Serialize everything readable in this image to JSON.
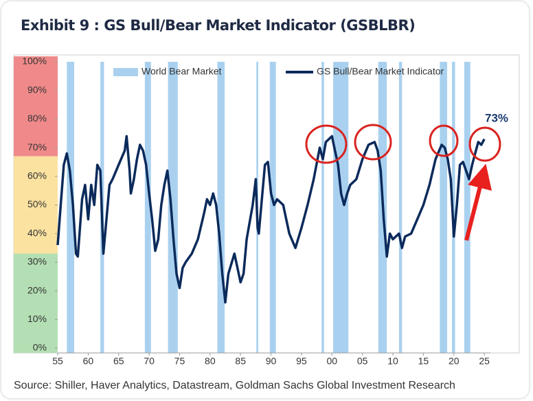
{
  "chart_data": {
    "type": "line",
    "title": "Exhibit 9 : GS Bull/Bear Market Indicator (GSBLBR)",
    "source": "Source: Shiller, Haver Analytics, Datastream, Goldman Sachs Global Investment Research",
    "annotation": "73%",
    "xlim": [
      1955,
      2026
    ],
    "ylim": [
      0,
      100
    ],
    "xticks": [
      {
        "value": 1955,
        "label": "55"
      },
      {
        "value": 1960,
        "label": "60"
      },
      {
        "value": 1965,
        "label": "65"
      },
      {
        "value": 1970,
        "label": "70"
      },
      {
        "value": 1975,
        "label": "75"
      },
      {
        "value": 1980,
        "label": "80"
      },
      {
        "value": 1985,
        "label": "85"
      },
      {
        "value": 1990,
        "label": "90"
      },
      {
        "value": 1995,
        "label": "95"
      },
      {
        "value": 2000,
        "label": "00"
      },
      {
        "value": 2005,
        "label": "05"
      },
      {
        "value": 2010,
        "label": "10"
      },
      {
        "value": 2015,
        "label": "15"
      },
      {
        "value": 2020,
        "label": "20"
      },
      {
        "value": 2025,
        "label": "25"
      }
    ],
    "yticks": [
      {
        "value": 0,
        "label": "0%"
      },
      {
        "value": 10,
        "label": "10%"
      },
      {
        "value": 20,
        "label": "20%"
      },
      {
        "value": 30,
        "label": "30%"
      },
      {
        "value": 40,
        "label": "40%"
      },
      {
        "value": 50,
        "label": "50%"
      },
      {
        "value": 60,
        "label": "60%"
      },
      {
        "value": 70,
        "label": "70%"
      },
      {
        "value": 80,
        "label": "80%"
      },
      {
        "value": 90,
        "label": "90%"
      },
      {
        "value": 100,
        "label": "100%"
      }
    ],
    "zones": [
      {
        "from": 67,
        "to": 100,
        "color": "#f08a8a"
      },
      {
        "from": 33,
        "to": 67,
        "color": "#fbe2a0"
      },
      {
        "from": 0,
        "to": 33,
        "color": "#b4dfb4"
      }
    ],
    "shaded_periods": {
      "name": "World Bear Market",
      "color": "#a9d1ef",
      "ranges": [
        [
          1956.5,
          1957.7
        ],
        [
          1962.0,
          1962.6
        ],
        [
          1969.3,
          1970.3
        ],
        [
          1973.1,
          1974.7
        ],
        [
          1981.2,
          1982.4
        ],
        [
          1987.6,
          1987.9
        ],
        [
          1989.8,
          1990.8
        ],
        [
          1998.3,
          1998.7
        ],
        [
          2000.2,
          2002.7
        ],
        [
          2007.6,
          2009.0
        ],
        [
          2011.0,
          2011.5
        ],
        [
          2017.7,
          2018.9
        ],
        [
          2019.7,
          2020.2
        ],
        [
          2021.7,
          2022.7
        ]
      ]
    },
    "x": [
      1955,
      1955.5,
      1956,
      1956.5,
      1957,
      1957.5,
      1958,
      1958.3,
      1959,
      1959.5,
      1960,
      1960.5,
      1961,
      1961.5,
      1962,
      1962.5,
      1963,
      1963.5,
      1964,
      1965,
      1966,
      1966.3,
      1966.8,
      1967,
      1967.5,
      1968,
      1968.5,
      1969,
      1969.5,
      1970,
      1970.5,
      1971,
      1971.5,
      1972,
      1972.5,
      1973,
      1973.5,
      1974,
      1974.5,
      1975,
      1975.5,
      1976,
      1977,
      1978,
      1979,
      1979.5,
      1980,
      1980.5,
      1981,
      1981.5,
      1982,
      1982.5,
      1983,
      1984,
      1985,
      1985.5,
      1986,
      1987,
      1987.5,
      1987.8,
      1988,
      1989,
      1989.5,
      1990,
      1990.5,
      1991,
      1992,
      1993,
      1994,
      1995,
      1996,
      1997,
      1998,
      1998.5,
      1999,
      2000,
      2000.5,
      2001,
      2001.5,
      2002,
      2002.5,
      2003,
      2004,
      2005,
      2006,
      2007,
      2007.5,
      2008,
      2008.5,
      2009,
      2009.5,
      2010,
      2011,
      2011.5,
      2012,
      2013,
      2014,
      2015,
      2016,
      2017,
      2018,
      2018.5,
      2019,
      2019.5,
      2020,
      2020.5,
      2021,
      2021.5,
      2022,
      2022.5,
      2023,
      2023.5,
      2024,
      2024.5,
      2025
    ],
    "series": [
      {
        "name": "GS Bull/Bear Market Indicator",
        "color": "#0b2a5b",
        "values": [
          36,
          50,
          64,
          68,
          62,
          50,
          33,
          32,
          52,
          57,
          45,
          57,
          50,
          64,
          62,
          33,
          45,
          57,
          59,
          64,
          69,
          74,
          62,
          54,
          59,
          66,
          71,
          69,
          64,
          54,
          45,
          34,
          38,
          50,
          57,
          62,
          52,
          38,
          26,
          21,
          28,
          30,
          33,
          38,
          47,
          52,
          50,
          54,
          50,
          40,
          26,
          16,
          26,
          33,
          23,
          26,
          38,
          50,
          59,
          42,
          40,
          64,
          65,
          54,
          50,
          52,
          50,
          40,
          35,
          42,
          50,
          59,
          70,
          66,
          72,
          74,
          69,
          64,
          54,
          50,
          54,
          57,
          59,
          66,
          71,
          72,
          69,
          62,
          45,
          32,
          40,
          38,
          40,
          35,
          39,
          40,
          45,
          50,
          57,
          66,
          71,
          70,
          66,
          59,
          39,
          50,
          64,
          65,
          62,
          59,
          64,
          68,
          72,
          71,
          73
        ]
      }
    ]
  }
}
